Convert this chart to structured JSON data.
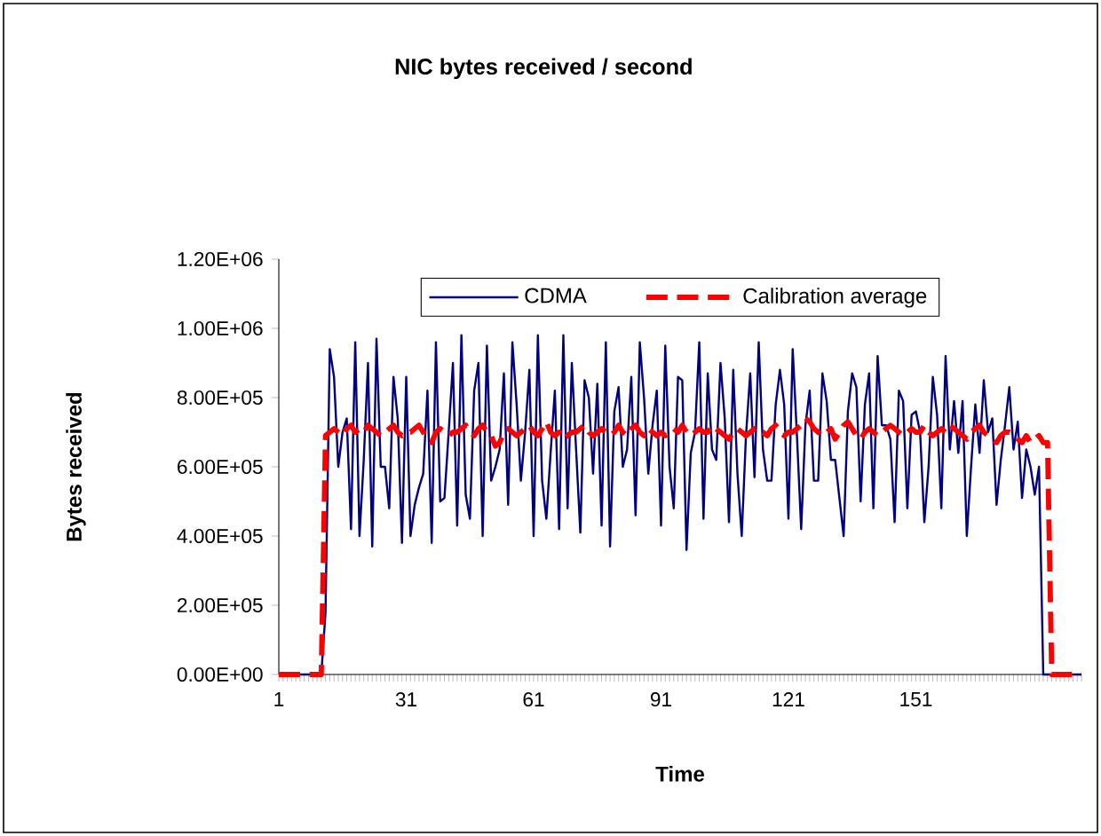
{
  "chart_data": {
    "type": "line",
    "title": "NIC bytes received / second",
    "xlabel": "Time",
    "ylabel": "Bytes received",
    "categories": [
      "1",
      null,
      null,
      null,
      null,
      null,
      null,
      null,
      null,
      null,
      null,
      null,
      null,
      null,
      null,
      null,
      null,
      null,
      null,
      null,
      null,
      null,
      null,
      null,
      null,
      null,
      null,
      null,
      null,
      null,
      "31",
      null,
      null,
      null,
      null,
      null,
      null,
      null,
      null,
      null,
      null,
      null,
      null,
      null,
      null,
      null,
      null,
      null,
      null,
      null,
      null,
      null,
      null,
      null,
      null,
      null,
      null,
      null,
      null,
      null,
      "61",
      null,
      null,
      null,
      null,
      null,
      null,
      null,
      null,
      null,
      null,
      null,
      null,
      null,
      null,
      null,
      null,
      null,
      null,
      null,
      null,
      null,
      null,
      null,
      null,
      null,
      null,
      null,
      null,
      null,
      "91",
      null,
      null,
      null,
      null,
      null,
      null,
      null,
      null,
      null,
      null,
      null,
      null,
      null,
      null,
      null,
      null,
      null,
      null,
      null,
      null,
      null,
      null,
      null,
      null,
      null,
      null,
      null,
      null,
      null,
      "121",
      null,
      null,
      null,
      null,
      null,
      null,
      null,
      null,
      null,
      null,
      null,
      null,
      null,
      null,
      null,
      null,
      null,
      null,
      null,
      null,
      null,
      null,
      null,
      null,
      null,
      null,
      null,
      null,
      null,
      "151",
      null,
      null,
      null,
      null,
      null,
      null,
      null,
      null,
      null,
      null,
      null,
      null,
      null,
      null,
      null,
      null,
      null,
      null,
      null,
      null,
      null,
      null,
      null,
      null,
      null,
      null,
      null,
      null,
      null,
      null,
      null,
      null,
      null,
      null,
      null,
      null,
      null,
      null,
      null
    ],
    "series": [
      {
        "name": "CDMA",
        "color": "#000080",
        "line_style": "solid",
        "values": [
          null,
          null,
          null,
          0,
          0,
          0,
          0,
          0,
          0,
          0,
          0,
          180000,
          940000,
          860000,
          600000,
          700000,
          740000,
          420000,
          960000,
          400000,
          620000,
          900000,
          370000,
          970000,
          600000,
          600000,
          480000,
          860000,
          740000,
          380000,
          860000,
          400000,
          490000,
          540000,
          580000,
          820000,
          380000,
          960000,
          500000,
          510000,
          700000,
          900000,
          430000,
          980000,
          520000,
          450000,
          820000,
          900000,
          400000,
          950000,
          560000,
          600000,
          650000,
          870000,
          490000,
          960000,
          780000,
          560000,
          700000,
          880000,
          400000,
          980000,
          560000,
          450000,
          640000,
          820000,
          420000,
          980000,
          480000,
          900000,
          650000,
          410000,
          850000,
          800000,
          580000,
          840000,
          430000,
          960000,
          370000,
          760000,
          830000,
          600000,
          650000,
          860000,
          460000,
          960000,
          800000,
          580000,
          720000,
          820000,
          430000,
          950000,
          600000,
          480000,
          860000,
          850000,
          360000,
          640000,
          700000,
          960000,
          450000,
          870000,
          650000,
          620000,
          900000,
          740000,
          440000,
          880000,
          580000,
          400000,
          690000,
          870000,
          570000,
          960000,
          650000,
          560000,
          560000,
          780000,
          880000,
          780000,
          450000,
          940000,
          690000,
          420000,
          720000,
          820000,
          560000,
          560000,
          870000,
          790000,
          620000,
          620000,
          510000,
          400000,
          760000,
          870000,
          830000,
          500000,
          780000,
          870000,
          480000,
          920000,
          720000,
          720000,
          680000,
          440000,
          820000,
          790000,
          480000,
          750000,
          760000,
          700000,
          440000,
          600000,
          860000,
          750000,
          480000,
          920000,
          650000,
          790000,
          640000,
          790000,
          400000,
          600000,
          780000,
          640000,
          850000,
          700000,
          740000,
          490000,
          620000,
          720000,
          830000,
          650000,
          730000,
          510000,
          650000,
          600000,
          520000,
          600000,
          0,
          0,
          0,
          0,
          0,
          0,
          0,
          0,
          0,
          0
        ]
      },
      {
        "name": "Calibration average",
        "color": "#ff0000",
        "line_style": "dashed",
        "values": [
          0,
          0,
          0,
          0,
          0,
          0,
          0,
          0,
          0,
          0,
          0,
          690000,
          700000,
          710000,
          700000,
          690000,
          710000,
          720000,
          700000,
          710000,
          700000,
          720000,
          710000,
          700000,
          690000,
          700000,
          710000,
          720000,
          700000,
          690000,
          700000,
          700000,
          710000,
          720000,
          700000,
          680000,
          670000,
          700000,
          710000,
          700000,
          690000,
          700000,
          700000,
          710000,
          720000,
          700000,
          690000,
          710000,
          720000,
          700000,
          690000,
          660000,
          670000,
          700000,
          710000,
          700000,
          690000,
          700000,
          710000,
          720000,
          700000,
          690000,
          710000,
          730000,
          700000,
          690000,
          700000,
          680000,
          690000,
          700000,
          700000,
          710000,
          720000,
          700000,
          690000,
          700000,
          710000,
          700000,
          690000,
          700000,
          720000,
          700000,
          690000,
          710000,
          720000,
          700000,
          690000,
          710000,
          700000,
          690000,
          700000,
          690000,
          700000,
          710000,
          700000,
          720000,
          700000,
          690000,
          700000,
          710000,
          700000,
          700000,
          720000,
          710000,
          700000,
          690000,
          680000,
          700000,
          710000,
          700000,
          690000,
          700000,
          710000,
          700000,
          700000,
          690000,
          710000,
          720000,
          700000,
          690000,
          700000,
          700000,
          710000,
          720000,
          740000,
          730000,
          710000,
          700000,
          690000,
          700000,
          710000,
          680000,
          700000,
          720000,
          730000,
          710000,
          690000,
          680000,
          700000,
          710000,
          700000,
          690000,
          700000,
          710000,
          720000,
          710000,
          700000,
          690000,
          700000,
          710000,
          700000,
          700000,
          720000,
          700000,
          690000,
          700000,
          710000,
          700000,
          720000,
          710000,
          700000,
          690000,
          680000,
          700000,
          710000,
          720000,
          700000,
          690000,
          680000,
          670000,
          690000,
          700000,
          700000,
          690000,
          680000,
          670000,
          690000,
          670000,
          680000,
          690000,
          670000,
          670000,
          0,
          0,
          0,
          0,
          0,
          0,
          0,
          0
        ]
      }
    ],
    "ylim": [
      0,
      1200000
    ],
    "yticks": [
      {
        "value": 0,
        "label": "0.00E+00"
      },
      {
        "value": 200000,
        "label": "2.00E+05"
      },
      {
        "value": 400000,
        "label": "4.00E+05"
      },
      {
        "value": 600000,
        "label": "6.00E+05"
      },
      {
        "value": 800000,
        "label": "8.00E+05"
      },
      {
        "value": 1000000,
        "label": "1.00E+06"
      },
      {
        "value": 1200000,
        "label": "1.20E+06"
      }
    ],
    "grid": false,
    "legend": "top",
    "marker": "none"
  }
}
